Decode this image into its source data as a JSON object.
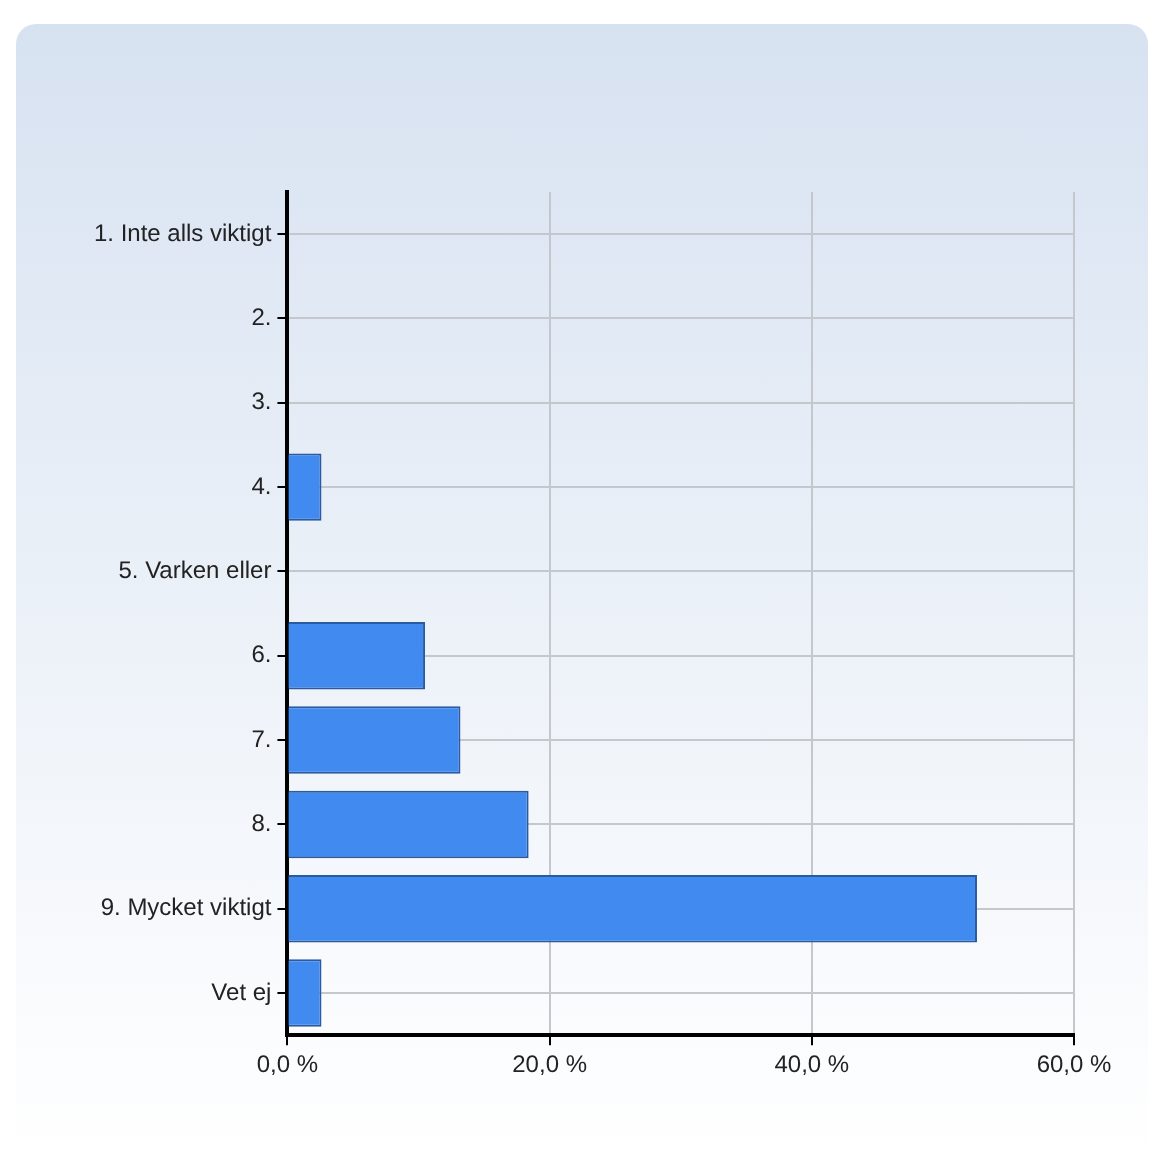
{
  "chart_data": {
    "type": "bar",
    "orientation": "horizontal",
    "categories": [
      "1. Inte alls viktigt",
      "2.",
      "3.",
      "4.",
      "5. Varken eller",
      "6.",
      "7.",
      "8.",
      "9. Mycket viktigt",
      "Vet ej"
    ],
    "values": [
      0,
      0,
      0,
      2.6,
      0,
      10.5,
      13.2,
      18.4,
      52.6,
      2.6
    ],
    "color": "#418bf0",
    "xlim": [
      0,
      60
    ],
    "xticks": [
      {
        "value": 0,
        "label": "0,0 %"
      },
      {
        "value": 20,
        "label": "20,0 %"
      },
      {
        "value": 40,
        "label": "40,0 %"
      },
      {
        "value": 60,
        "label": "60,0 %"
      }
    ],
    "grid": true,
    "legend": false
  }
}
